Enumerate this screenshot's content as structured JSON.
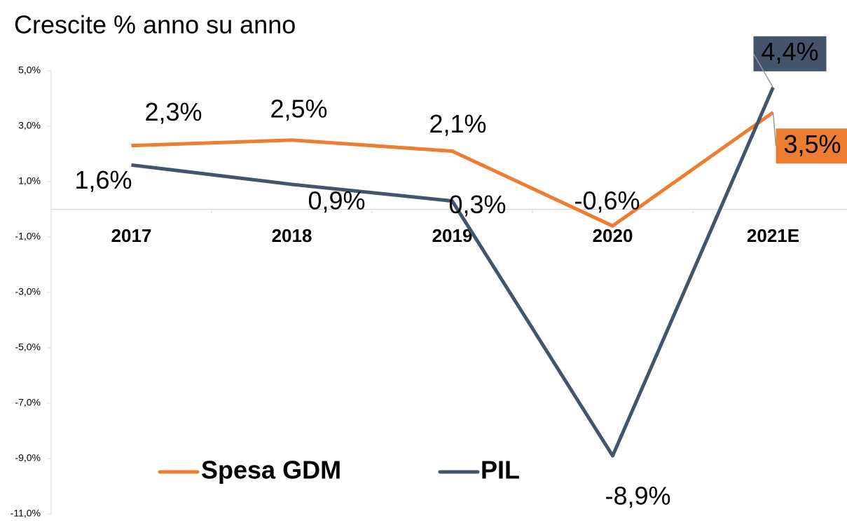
{
  "chart_data": {
    "type": "line",
    "title": "Crescite % anno su anno",
    "categories": [
      "2017",
      "2018",
      "2019",
      "2020",
      "2021E"
    ],
    "series": [
      {
        "name": "Spesa GDM",
        "color": "#ed7d31",
        "values": [
          2.3,
          2.5,
          2.1,
          -0.6,
          3.5
        ],
        "value_labels": [
          "2,3%",
          "2,5%",
          "2,1%",
          "-0,6%",
          "3,5%"
        ]
      },
      {
        "name": "PIL",
        "color": "#44546a",
        "values": [
          1.6,
          0.9,
          0.3,
          -8.9,
          4.4
        ],
        "value_labels": [
          "1,6%",
          "0,9%",
          "0,3%",
          "-8,9%",
          "4,4%"
        ]
      }
    ],
    "ylim": [
      -11,
      5
    ],
    "yticks": [
      {
        "value": 5,
        "label": "5,0%"
      },
      {
        "value": 3,
        "label": "3,0%"
      },
      {
        "value": 1,
        "label": "1,0%"
      },
      {
        "value": -1,
        "label": "-1,0%"
      },
      {
        "value": -3,
        "label": "-3,0%"
      },
      {
        "value": -5,
        "label": "-5,0%"
      },
      {
        "value": -7,
        "label": "-7,0%"
      },
      {
        "value": -9,
        "label": "-9,0%"
      },
      {
        "value": -11,
        "label": "-11,0%"
      }
    ],
    "legend": "bottom"
  }
}
